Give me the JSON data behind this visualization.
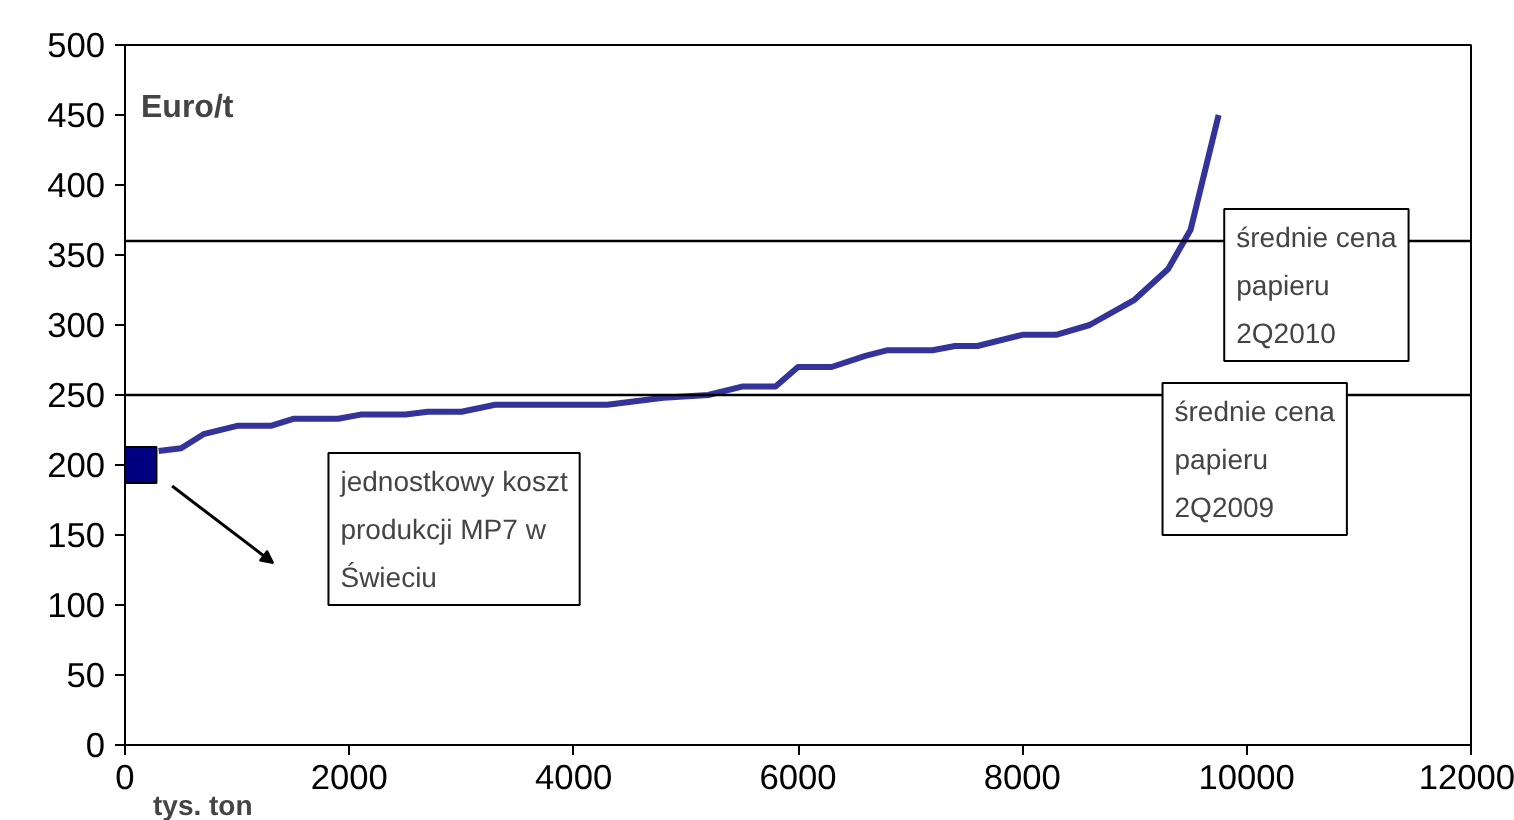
{
  "chart_data": {
    "type": "line",
    "xlabel": "tys. ton",
    "ylabel": "Euro/t",
    "xlim": [
      0,
      12000
    ],
    "xticks": [
      0,
      2000,
      4000,
      6000,
      8000,
      10000,
      12000
    ],
    "ylim": [
      0,
      500
    ],
    "yticks": [
      0,
      50,
      100,
      150,
      200,
      250,
      300,
      350,
      400,
      450,
      500
    ],
    "grid": false,
    "series": [
      {
        "color": "#333399",
        "x": [
          300,
          500,
          700,
          1000,
          1300,
          1500,
          1900,
          2100,
          2500,
          2700,
          3000,
          3300,
          4300,
          4800,
          5200,
          5500,
          5800,
          6000,
          6300,
          6600,
          6800,
          7200,
          7400,
          7600,
          8000,
          8300,
          8600,
          9000,
          9300,
          9500,
          9750
        ],
        "values": [
          210,
          212,
          222,
          228,
          228,
          233,
          233,
          236,
          236,
          238,
          238,
          243,
          243,
          248,
          250,
          256,
          256,
          270,
          270,
          278,
          282,
          282,
          285,
          285,
          293,
          293,
          300,
          318,
          340,
          368,
          450
        ]
      },
      {
        "type": "scatter",
        "marker": "square",
        "color": "#000080",
        "x": [
          120
        ],
        "values": [
          200
        ]
      }
    ],
    "ref_lines": [
      {
        "axis": "y",
        "value": 360,
        "label": "średnie cena papieru 2Q2010",
        "color": "#000000"
      },
      {
        "axis": "y",
        "value": 250,
        "label": "średnie cena papieru 2Q2009",
        "color": "#000000"
      }
    ],
    "annotations": [
      "jednostkowy koszt produkcji MP7 w Świeciu"
    ]
  }
}
